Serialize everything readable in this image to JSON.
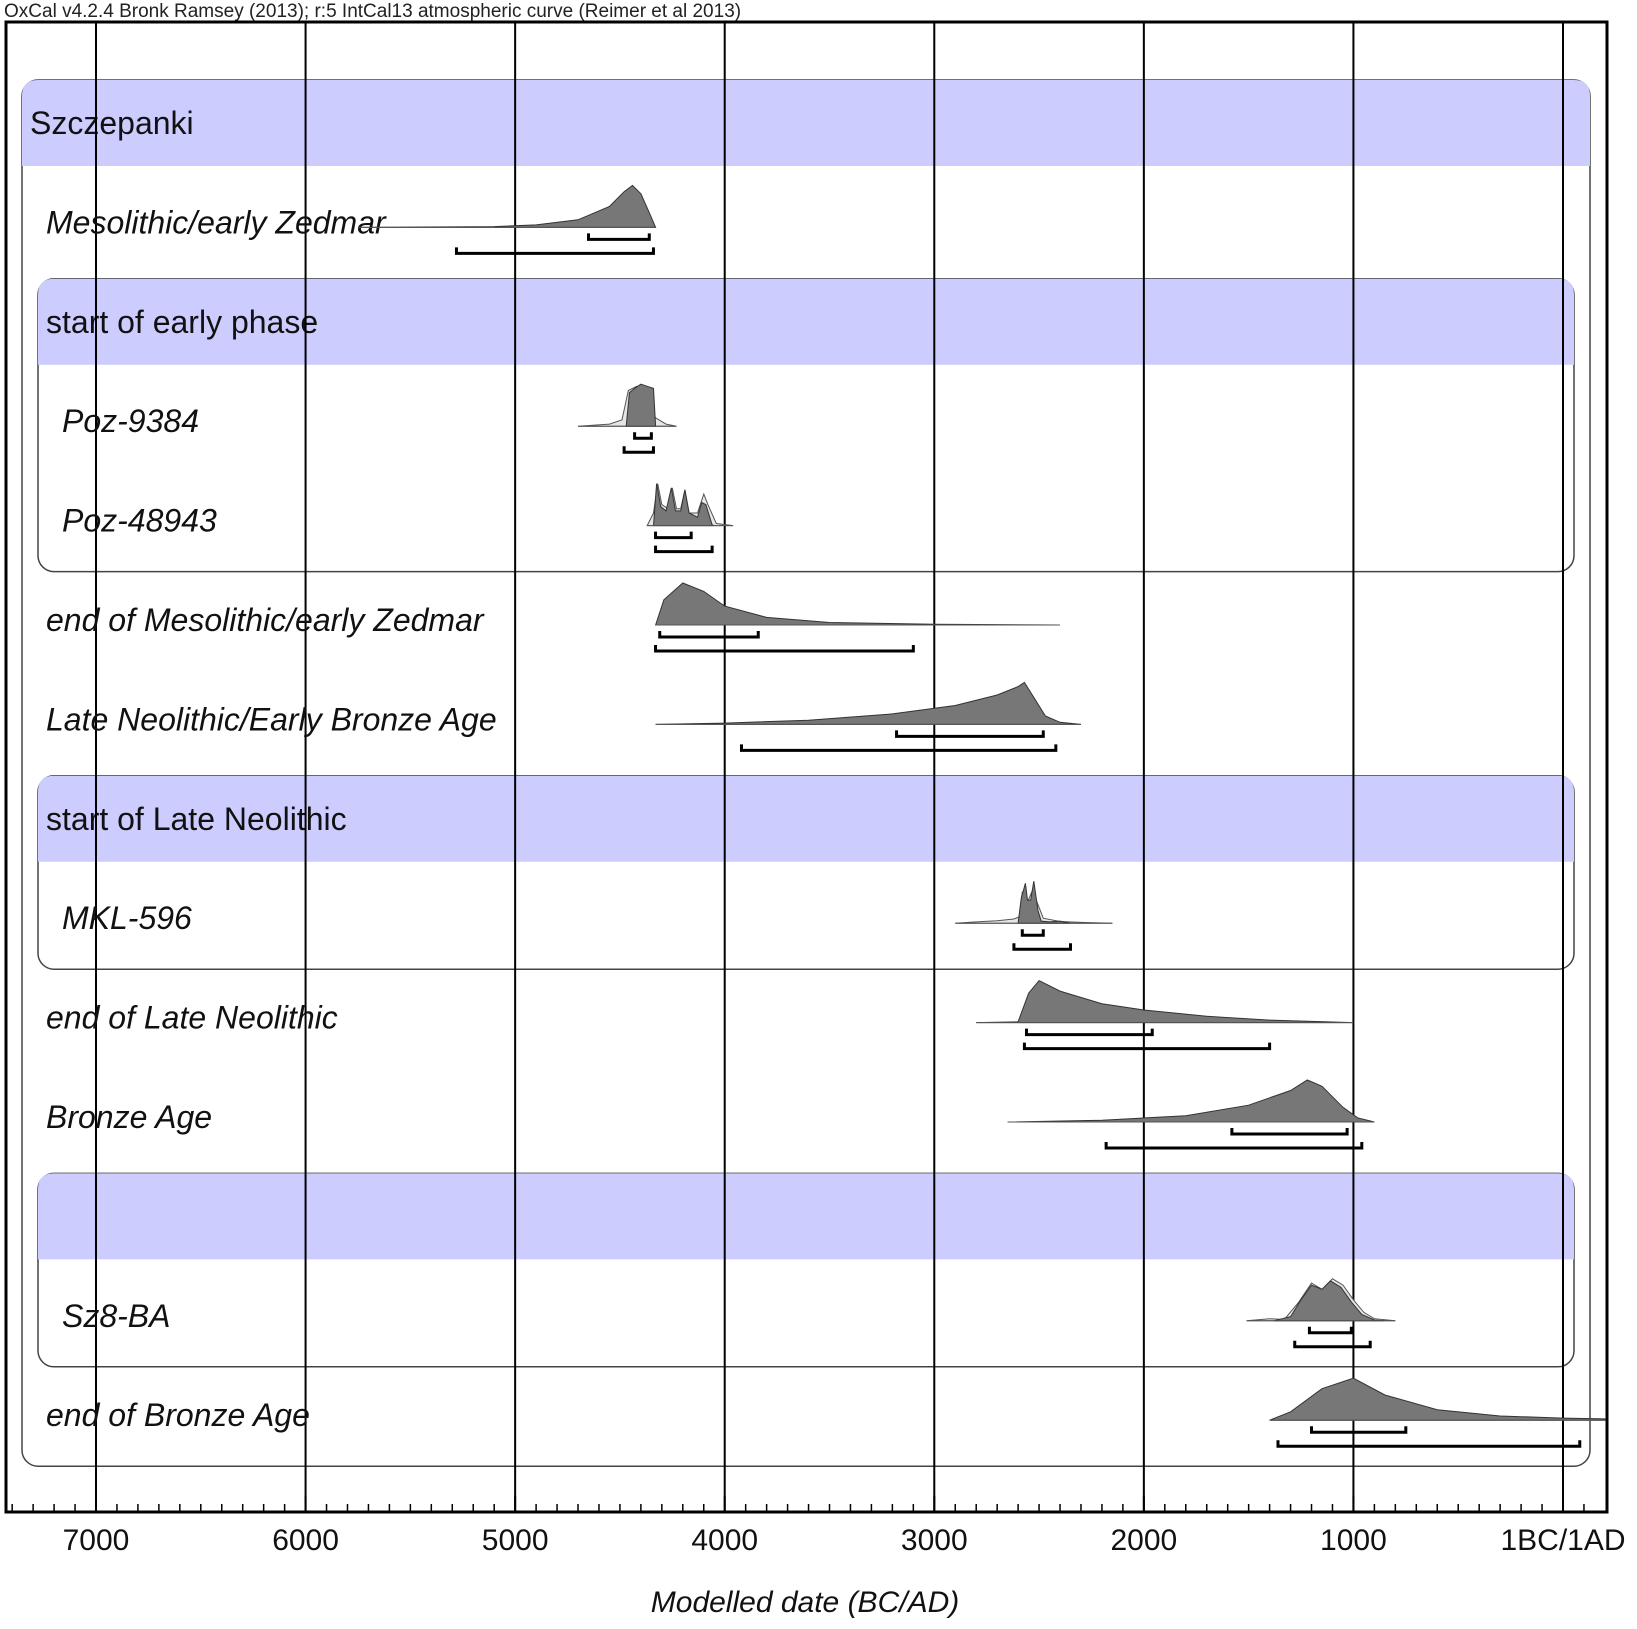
{
  "chart_data": {
    "type": "oxcal-multiplot",
    "title": "OxCal v4.2.4 Bronk Ramsey (2013); r:5 IntCal13 atmospheric curve (Reimer et al 2013)",
    "xlabel": "Modelled date (BC/AD)",
    "xlim": [
      -7450,
      200
    ],
    "ticks": [
      {
        "value": -7000,
        "label": "7000"
      },
      {
        "value": -6000,
        "label": "6000"
      },
      {
        "value": -5000,
        "label": "5000"
      },
      {
        "value": -4000,
        "label": "4000"
      },
      {
        "value": -3000,
        "label": "3000"
      },
      {
        "value": -2000,
        "label": "2000"
      },
      {
        "value": -1000,
        "label": "1000"
      },
      {
        "value": 0,
        "label": "1BC/1AD"
      }
    ],
    "groups": [
      {
        "label": "Szczepanki",
        "row": 0,
        "last_row": 13,
        "level": 0
      },
      {
        "label": "start of early phase",
        "row": 2,
        "last_row": 4,
        "level": 1
      },
      {
        "label": "start of Late Neolithic",
        "row": 7,
        "last_row": 8,
        "level": 1
      },
      {
        "label": "",
        "row": 11,
        "last_row": 12,
        "level": 1
      }
    ],
    "items": [
      {
        "label": "Mesolithic/early Zedmar",
        "row": 1,
        "dist": [
          [
            -5750,
            0
          ],
          [
            -5100,
            0.02
          ],
          [
            -4900,
            0.06
          ],
          [
            -4700,
            0.18
          ],
          [
            -4550,
            0.5
          ],
          [
            -4480,
            0.85
          ],
          [
            -4440,
            1
          ],
          [
            -4400,
            0.8
          ],
          [
            -4360,
            0.35
          ],
          [
            -4330,
            0
          ]
        ],
        "range68": [
          [
            -4650,
            -4360
          ]
        ],
        "range95": [
          [
            -5280,
            -4340
          ]
        ]
      },
      {
        "label": "Poz-9384",
        "row": 3,
        "prior": [
          [
            -4700,
            0
          ],
          [
            -4550,
            0.05
          ],
          [
            -4490,
            0.15
          ],
          [
            -4460,
            0.85
          ],
          [
            -4420,
            0.95
          ],
          [
            -4380,
            0.7
          ],
          [
            -4330,
            0.2
          ],
          [
            -4280,
            0.05
          ],
          [
            -4230,
            0
          ]
        ],
        "dist": [
          [
            -4470,
            0
          ],
          [
            -4455,
            0.8
          ],
          [
            -4430,
            0.9
          ],
          [
            -4400,
            1
          ],
          [
            -4370,
            0.95
          ],
          [
            -4340,
            0.9
          ],
          [
            -4330,
            0
          ]
        ],
        "range68": [
          [
            -4430,
            -4350
          ]
        ],
        "range95": [
          [
            -4480,
            -4340
          ]
        ]
      },
      {
        "label": "Poz-48943",
        "row": 4,
        "prior": [
          [
            -4370,
            0
          ],
          [
            -4340,
            0.3
          ],
          [
            -4320,
            1
          ],
          [
            -4300,
            0.5
          ],
          [
            -4270,
            0.4
          ],
          [
            -4250,
            0.9
          ],
          [
            -4230,
            0.4
          ],
          [
            -4210,
            0.4
          ],
          [
            -4190,
            0.85
          ],
          [
            -4170,
            0.3
          ],
          [
            -4130,
            0.3
          ],
          [
            -4100,
            0.75
          ],
          [
            -4080,
            0.5
          ],
          [
            -4040,
            0.05
          ],
          [
            -3960,
            0
          ]
        ],
        "dist": [
          [
            -4340,
            0
          ],
          [
            -4325,
            1
          ],
          [
            -4305,
            0.45
          ],
          [
            -4280,
            0.35
          ],
          [
            -4255,
            0.9
          ],
          [
            -4235,
            0.35
          ],
          [
            -4210,
            0.35
          ],
          [
            -4190,
            0.85
          ],
          [
            -4170,
            0.3
          ],
          [
            -4130,
            0.2
          ],
          [
            -4110,
            0.55
          ],
          [
            -4090,
            0.5
          ],
          [
            -4060,
            0.02
          ],
          [
            -4050,
            0
          ]
        ],
        "range68": [
          [
            -4330,
            -4160
          ]
        ],
        "range95": [
          [
            -4330,
            -4060
          ]
        ]
      },
      {
        "label": "end of Mesolithic/early Zedmar",
        "row": 5,
        "dist": [
          [
            -4330,
            0
          ],
          [
            -4290,
            0.6
          ],
          [
            -4200,
            1
          ],
          [
            -4100,
            0.8
          ],
          [
            -4000,
            0.45
          ],
          [
            -3800,
            0.18
          ],
          [
            -3500,
            0.06
          ],
          [
            -3000,
            0.02
          ],
          [
            -2400,
            0
          ]
        ],
        "range68": [
          [
            -4310,
            -3840
          ]
        ],
        "range95": [
          [
            -4330,
            -3100
          ]
        ]
      },
      {
        "label": "Late Neolithic/Early Bronze Age",
        "row": 6,
        "dist": [
          [
            -4330,
            0
          ],
          [
            -4000,
            0.03
          ],
          [
            -3600,
            0.1
          ],
          [
            -3200,
            0.25
          ],
          [
            -2900,
            0.45
          ],
          [
            -2700,
            0.7
          ],
          [
            -2600,
            0.9
          ],
          [
            -2570,
            1
          ],
          [
            -2520,
            0.6
          ],
          [
            -2470,
            0.2
          ],
          [
            -2400,
            0.05
          ],
          [
            -2300,
            0
          ]
        ],
        "range68": [
          [
            -3180,
            -2480
          ]
        ],
        "range95": [
          [
            -3920,
            -2420
          ]
        ]
      },
      {
        "label": "MKL-596",
        "row": 8,
        "prior": [
          [
            -2900,
            0
          ],
          [
            -2800,
            0.03
          ],
          [
            -2700,
            0.06
          ],
          [
            -2620,
            0.1
          ],
          [
            -2595,
            0.15
          ],
          [
            -2580,
            0.75
          ],
          [
            -2560,
            0.45
          ],
          [
            -2530,
            0.8
          ],
          [
            -2510,
            0.5
          ],
          [
            -2480,
            0.12
          ],
          [
            -2400,
            0.04
          ],
          [
            -2300,
            0.02
          ],
          [
            -2150,
            0
          ]
        ],
        "dist": [
          [
            -2600,
            0
          ],
          [
            -2585,
            0.6
          ],
          [
            -2565,
            0.95
          ],
          [
            -2555,
            0.55
          ],
          [
            -2540,
            0.55
          ],
          [
            -2525,
            1
          ],
          [
            -2505,
            0.3
          ],
          [
            -2490,
            0.05
          ],
          [
            -2450,
            0.03
          ],
          [
            -2400,
            0.05
          ],
          [
            -2370,
            0.02
          ],
          [
            -2350,
            0
          ]
        ],
        "range68": [
          [
            -2580,
            -2480
          ]
        ],
        "range95": [
          [
            -2620,
            -2350
          ]
        ]
      },
      {
        "label": "end of Late Neolithic",
        "row": 9,
        "dist": [
          [
            -2800,
            0
          ],
          [
            -2600,
            0.02
          ],
          [
            -2550,
            0.7
          ],
          [
            -2500,
            1
          ],
          [
            -2400,
            0.75
          ],
          [
            -2200,
            0.45
          ],
          [
            -2000,
            0.3
          ],
          [
            -1700,
            0.15
          ],
          [
            -1400,
            0.06
          ],
          [
            -1000,
            0
          ]
        ],
        "range68": [
          [
            -2560,
            -1960
          ]
        ],
        "range95": [
          [
            -2570,
            -1400
          ]
        ]
      },
      {
        "label": "Bronze Age",
        "row": 10,
        "dist": [
          [
            -2650,
            0
          ],
          [
            -2200,
            0.04
          ],
          [
            -1800,
            0.15
          ],
          [
            -1500,
            0.4
          ],
          [
            -1300,
            0.75
          ],
          [
            -1220,
            1
          ],
          [
            -1150,
            0.85
          ],
          [
            -1050,
            0.35
          ],
          [
            -980,
            0.1
          ],
          [
            -900,
            0
          ]
        ],
        "range68": [
          [
            -1580,
            -1030
          ]
        ],
        "range95": [
          [
            -2180,
            -960
          ]
        ]
      },
      {
        "label": "Sz8-BA",
        "row": 12,
        "prior": [
          [
            -1510,
            0
          ],
          [
            -1400,
            0.05
          ],
          [
            -1330,
            0.03
          ],
          [
            -1260,
            0.45
          ],
          [
            -1200,
            0.9
          ],
          [
            -1150,
            0.75
          ],
          [
            -1100,
            1
          ],
          [
            -1050,
            0.85
          ],
          [
            -1000,
            0.5
          ],
          [
            -950,
            0.2
          ],
          [
            -900,
            0.05
          ],
          [
            -800,
            0
          ]
        ],
        "dist": [
          [
            -1380,
            0
          ],
          [
            -1300,
            0.1
          ],
          [
            -1250,
            0.5
          ],
          [
            -1200,
            0.85
          ],
          [
            -1150,
            0.75
          ],
          [
            -1110,
            0.95
          ],
          [
            -1060,
            0.8
          ],
          [
            -1010,
            0.45
          ],
          [
            -960,
            0.15
          ],
          [
            -900,
            0.02
          ],
          [
            -850,
            0
          ]
        ],
        "range68": [
          [
            -1210,
            -1010
          ]
        ],
        "range95": [
          [
            -1280,
            -920
          ]
        ]
      },
      {
        "label": "end of Bronze Age",
        "row": 13,
        "dist": [
          [
            -1400,
            0
          ],
          [
            -1300,
            0.2
          ],
          [
            -1150,
            0.75
          ],
          [
            -1000,
            1
          ],
          [
            -850,
            0.6
          ],
          [
            -600,
            0.25
          ],
          [
            -300,
            0.1
          ],
          [
            0,
            0.05
          ],
          [
            200,
            0.03
          ]
        ],
        "range68": [
          [
            -1200,
            -750
          ]
        ],
        "range95": [
          [
            -1360,
            80
          ]
        ]
      }
    ]
  }
}
